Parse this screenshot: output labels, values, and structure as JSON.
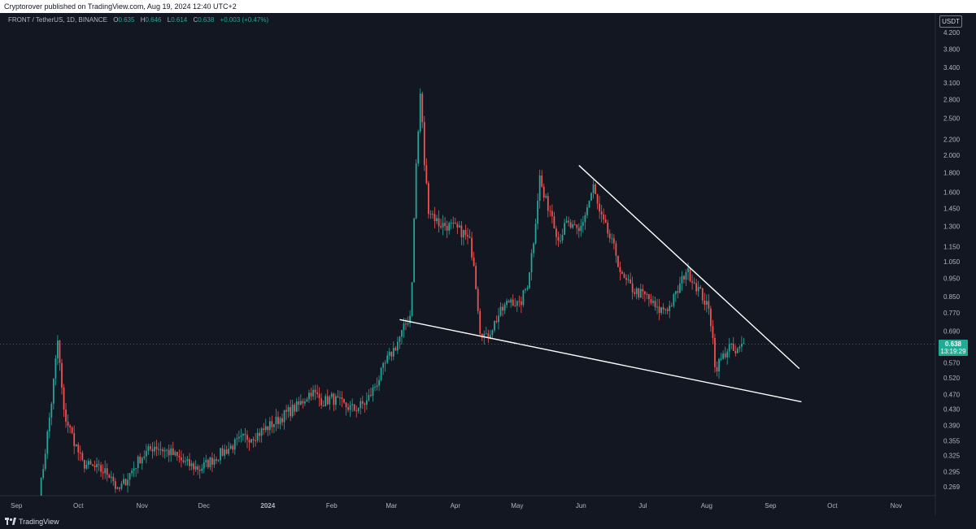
{
  "header": {
    "text": "Cryptorover published on TradingView.com, Aug 19, 2024 12:40 UTC+2"
  },
  "legend": {
    "symbol": "FRONT / TetherUS, 1D, BINANCE",
    "o_label": "O",
    "o_value": "0.635",
    "h_label": "H",
    "h_value": "0.646",
    "l_label": "L",
    "l_value": "0.614",
    "c_label": "C",
    "c_value": "0.638",
    "change": "+0.003 (+0.47%)"
  },
  "price_axis": {
    "currency": "USDT"
  },
  "last_price": {
    "value": "0.638",
    "countdown": "13:19:29"
  },
  "footer": {
    "brand": "TradingView"
  },
  "colors": {
    "background": "#131722",
    "up": "#26a69a",
    "down": "#ef5350",
    "trendline": "#ffffff",
    "price_tag": "#22ab94"
  },
  "chart_data": {
    "type": "candlestick",
    "title": "FRONT / TetherUS, 1D, BINANCE",
    "y_scale": "log",
    "ylim": [
      0.25,
      4.5
    ],
    "y_ticks": [
      "4.200",
      "3.800",
      "3.400",
      "3.100",
      "2.800",
      "2.500",
      "2.200",
      "2.000",
      "1.800",
      "1.600",
      "1.450",
      "1.300",
      "1.150",
      "1.050",
      "0.950",
      "0.850",
      "0.770",
      "0.690",
      "0.630",
      "0.570",
      "0.520",
      "0.470",
      "0.430",
      "0.390",
      "0.355",
      "0.325",
      "0.295",
      "0.269"
    ],
    "x_ticks": [
      "Sep",
      "Oct",
      "Nov",
      "Dec",
      "2024",
      "Feb",
      "Mar",
      "Apr",
      "May",
      "Jun",
      "Jul",
      "Aug",
      "Sep",
      "Oct",
      "Nov"
    ],
    "x_range": [
      "2023-08-24",
      "2024-11-20"
    ],
    "price_points": [
      [
        "2023-09-12",
        0.25
      ],
      [
        "2023-09-18",
        0.45
      ],
      [
        "2023-09-21",
        0.65
      ],
      [
        "2023-09-24",
        0.42
      ],
      [
        "2023-09-27",
        0.38
      ],
      [
        "2023-10-03",
        0.31
      ],
      [
        "2023-10-10",
        0.3
      ],
      [
        "2023-10-17",
        0.29
      ],
      [
        "2023-10-20",
        0.26
      ],
      [
        "2023-10-24",
        0.28
      ],
      [
        "2023-10-31",
        0.32
      ],
      [
        "2023-11-07",
        0.345
      ],
      [
        "2023-11-15",
        0.33
      ],
      [
        "2023-11-22",
        0.31
      ],
      [
        "2023-11-29",
        0.3
      ],
      [
        "2023-12-06",
        0.32
      ],
      [
        "2023-12-13",
        0.34
      ],
      [
        "2023-12-20",
        0.36
      ],
      [
        "2023-12-27",
        0.37
      ],
      [
        "2024-01-05",
        0.4
      ],
      [
        "2024-01-10",
        0.42
      ],
      [
        "2024-01-16",
        0.44
      ],
      [
        "2024-01-22",
        0.48
      ],
      [
        "2024-01-28",
        0.45
      ],
      [
        "2024-02-01",
        0.46
      ],
      [
        "2024-02-07",
        0.44
      ],
      [
        "2024-02-12",
        0.43
      ],
      [
        "2024-02-18",
        0.45
      ],
      [
        "2024-02-24",
        0.52
      ],
      [
        "2024-02-28",
        0.58
      ],
      [
        "2024-03-03",
        0.63
      ],
      [
        "2024-03-07",
        0.7
      ],
      [
        "2024-03-10",
        0.76
      ],
      [
        "2024-03-11",
        0.95
      ],
      [
        "2024-03-12",
        1.35
      ],
      [
        "2024-03-13",
        1.9
      ],
      [
        "2024-03-14",
        2.3
      ],
      [
        "2024-03-15",
        2.9
      ],
      [
        "2024-03-16",
        2.4
      ],
      [
        "2024-03-17",
        1.9
      ],
      [
        "2024-03-19",
        1.45
      ],
      [
        "2024-03-24",
        1.32
      ],
      [
        "2024-03-30",
        1.3
      ],
      [
        "2024-04-05",
        1.25
      ],
      [
        "2024-04-08",
        1.18
      ],
      [
        "2024-04-10",
        1.05
      ],
      [
        "2024-04-13",
        0.7
      ],
      [
        "2024-04-16",
        0.66
      ],
      [
        "2024-04-22",
        0.76
      ],
      [
        "2024-04-28",
        0.84
      ],
      [
        "2024-05-02",
        0.8
      ],
      [
        "2024-05-06",
        0.92
      ],
      [
        "2024-05-09",
        1.2
      ],
      [
        "2024-05-12",
        1.75
      ],
      [
        "2024-05-14",
        1.55
      ],
      [
        "2024-05-18",
        1.4
      ],
      [
        "2024-05-21",
        1.2
      ],
      [
        "2024-05-25",
        1.32
      ],
      [
        "2024-05-31",
        1.25
      ],
      [
        "2024-06-03",
        1.4
      ],
      [
        "2024-06-07",
        1.65
      ],
      [
        "2024-06-10",
        1.4
      ],
      [
        "2024-06-14",
        1.25
      ],
      [
        "2024-06-18",
        1.1
      ],
      [
        "2024-06-21",
        0.95
      ],
      [
        "2024-06-27",
        0.88
      ],
      [
        "2024-07-03",
        0.85
      ],
      [
        "2024-07-08",
        0.78
      ],
      [
        "2024-07-14",
        0.8
      ],
      [
        "2024-07-18",
        0.88
      ],
      [
        "2024-07-22",
        1.0
      ],
      [
        "2024-07-25",
        0.95
      ],
      [
        "2024-07-30",
        0.85
      ],
      [
        "2024-08-02",
        0.78
      ],
      [
        "2024-08-04",
        0.68
      ],
      [
        "2024-08-05",
        0.55
      ],
      [
        "2024-08-08",
        0.58
      ],
      [
        "2024-08-12",
        0.63
      ],
      [
        "2024-08-15",
        0.6
      ],
      [
        "2024-08-19",
        0.638
      ]
    ],
    "trendlines": [
      {
        "name": "upper",
        "from": [
          "2024-05-31",
          1.88
        ],
        "to": [
          "2024-09-15",
          0.55
        ]
      },
      {
        "name": "lower",
        "from": [
          "2024-03-05",
          0.74
        ],
        "to": [
          "2024-09-16",
          0.45
        ]
      }
    ],
    "last_value": 0.638
  }
}
